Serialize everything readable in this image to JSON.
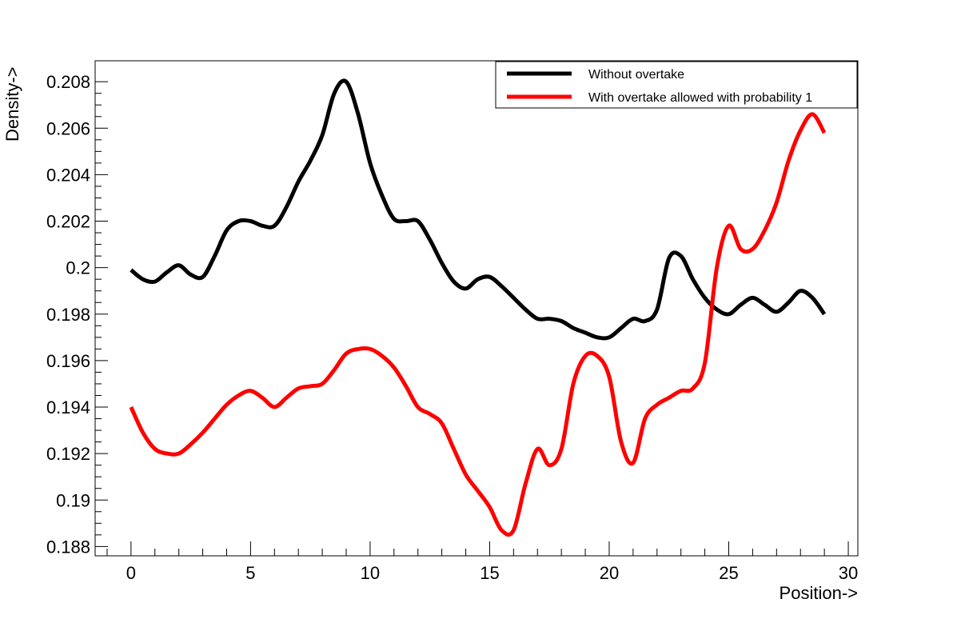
{
  "chart_data": {
    "type": "line",
    "xlabel": "Position->",
    "ylabel": "Density->",
    "xlim": [
      -1.5,
      30.4
    ],
    "ylim": [
      0.1876,
      0.2089
    ],
    "x_ticks": [
      0,
      5,
      10,
      15,
      20,
      25,
      30
    ],
    "x_tick_labels": [
      "0",
      "5",
      "10",
      "15",
      "20",
      "25",
      "30"
    ],
    "y_ticks": [
      0.188,
      0.19,
      0.192,
      0.194,
      0.196,
      0.198,
      0.2,
      0.202,
      0.204,
      0.206,
      0.208
    ],
    "y_tick_labels": [
      "0.188",
      "0.19",
      "0.192",
      "0.194",
      "0.196",
      "0.198",
      "0.2",
      "0.202",
      "0.204",
      "0.206",
      "0.208"
    ],
    "grid": false,
    "legend_position": "top-right",
    "series": [
      {
        "name": "Without overtake",
        "color": "#000000",
        "x": [
          0,
          0.5,
          1,
          1.5,
          2,
          2.5,
          3,
          3.5,
          4,
          4.5,
          5,
          5.5,
          6,
          6.5,
          7,
          7.5,
          8,
          8.5,
          9,
          9.5,
          10,
          10.5,
          11,
          11.5,
          12,
          12.5,
          13,
          13.5,
          14,
          14.5,
          15,
          15.5,
          16,
          16.5,
          17,
          17.5,
          18,
          18.5,
          19,
          19.5,
          20,
          20.5,
          21,
          21.5,
          22,
          22.5,
          23,
          23.5,
          24,
          24.5,
          25,
          25.5,
          26,
          26.5,
          27,
          27.5,
          28,
          28.5,
          29
        ],
        "y": [
          0.1999,
          0.1995,
          0.1994,
          0.1998,
          0.2001,
          0.1997,
          0.1996,
          0.2005,
          0.2016,
          0.202,
          0.202,
          0.2018,
          0.2018,
          0.2026,
          0.2037,
          0.2046,
          0.2057,
          0.2075,
          0.208,
          0.2066,
          0.2045,
          0.2031,
          0.2021,
          0.202,
          0.202,
          0.2012,
          0.2002,
          0.1994,
          0.1991,
          0.1995,
          0.1996,
          0.1992,
          0.1987,
          0.1982,
          0.1978,
          0.1978,
          0.1977,
          0.1974,
          0.1972,
          0.197,
          0.197,
          0.1974,
          0.1978,
          0.1977,
          0.1982,
          0.2004,
          0.2005,
          0.1995,
          0.1987,
          0.1982,
          0.198,
          0.1984,
          0.1987,
          0.1984,
          0.1981,
          0.1985,
          0.199,
          0.1987,
          0.198
        ]
      },
      {
        "name": "With overtake allowed with probability 1",
        "color": "#ff0000",
        "x": [
          0,
          0.5,
          1,
          1.5,
          2,
          2.5,
          3,
          3.5,
          4,
          4.5,
          5,
          5.5,
          6,
          6.5,
          7,
          7.5,
          8,
          8.5,
          9,
          9.5,
          10,
          10.5,
          11,
          11.5,
          12,
          12.5,
          13,
          13.5,
          14,
          14.5,
          15,
          15.5,
          16,
          16.5,
          17,
          17.5,
          18,
          18.5,
          19,
          19.5,
          20,
          20.5,
          21,
          21.5,
          22,
          22.5,
          23,
          23.5,
          24,
          24.5,
          25,
          25.5,
          26,
          26.5,
          27,
          27.5,
          28,
          28.5,
          29
        ],
        "y": [
          0.194,
          0.1929,
          0.1922,
          0.192,
          0.192,
          0.1924,
          0.1929,
          0.1935,
          0.1941,
          0.1945,
          0.1947,
          0.1944,
          0.194,
          0.1944,
          0.1948,
          0.1949,
          0.195,
          0.1956,
          0.1963,
          0.1965,
          0.1965,
          0.1962,
          0.1957,
          0.1949,
          0.194,
          0.1937,
          0.1933,
          0.1922,
          0.1911,
          0.1904,
          0.1897,
          0.1887,
          0.1887,
          0.1907,
          0.1922,
          0.1915,
          0.1922,
          0.195,
          0.1962,
          0.1962,
          0.1953,
          0.1925,
          0.1916,
          0.1935,
          0.1941,
          0.1944,
          0.1947,
          0.1948,
          0.1959,
          0.2,
          0.2018,
          0.2008,
          0.2008,
          0.2016,
          0.2028,
          0.2046,
          0.2059,
          0.2066,
          0.2058
        ]
      }
    ]
  }
}
